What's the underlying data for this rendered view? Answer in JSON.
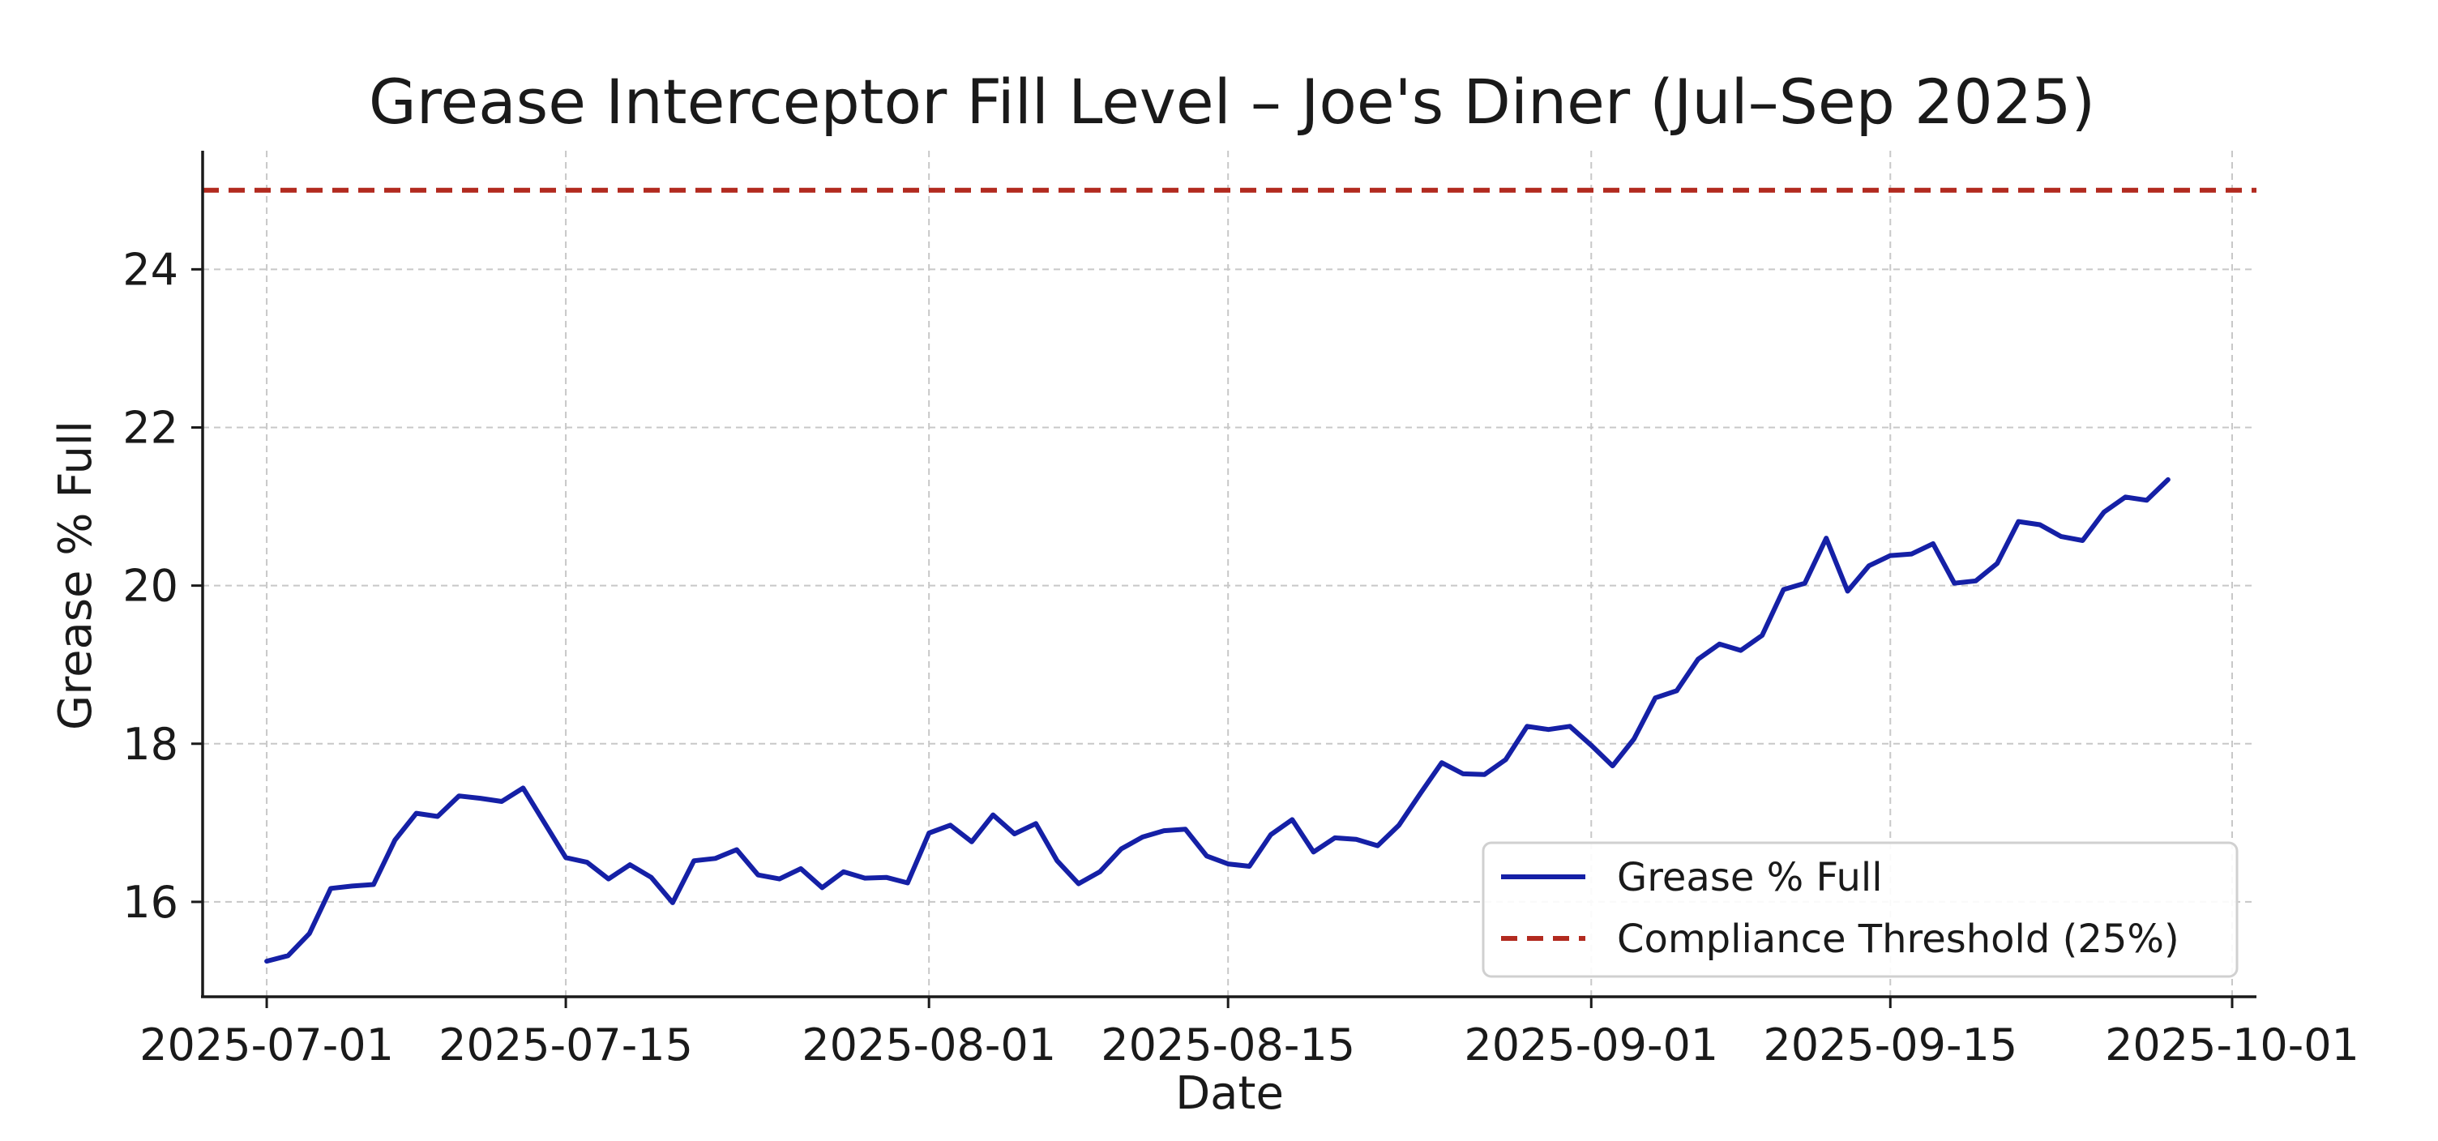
{
  "chart_data": {
    "type": "line",
    "title": "Grease Interceptor Fill Level – Joe's Diner (Jul–Sep 2025)",
    "xlabel": "Date",
    "ylabel": "Grease % Full",
    "x_type": "date",
    "xlim": [
      "2025-06-28",
      "2025-10-01"
    ],
    "ylim": [
      14.8,
      25.5
    ],
    "x_ticks": [
      "2025-07-01",
      "2025-07-15",
      "2025-08-01",
      "2025-08-15",
      "2025-09-01",
      "2025-09-15",
      "2025-10-01"
    ],
    "y_ticks": [
      16,
      18,
      20,
      22,
      24
    ],
    "grid": true,
    "legend_position": "bottom-right",
    "series": [
      {
        "name": "Grease % Full",
        "color": "#1520a6",
        "style": "solid",
        "points": [
          [
            "2025-07-01",
            15.25
          ],
          [
            "2025-07-02",
            15.32
          ],
          [
            "2025-07-03",
            15.6
          ],
          [
            "2025-07-04",
            16.17
          ],
          [
            "2025-07-05",
            16.2
          ],
          [
            "2025-07-06",
            16.22
          ],
          [
            "2025-07-07",
            16.78
          ],
          [
            "2025-07-08",
            17.12
          ],
          [
            "2025-07-09",
            17.08
          ],
          [
            "2025-07-10",
            17.34
          ],
          [
            "2025-07-11",
            17.31
          ],
          [
            "2025-07-12",
            17.27
          ],
          [
            "2025-07-13",
            17.44
          ],
          [
            "2025-07-14",
            17.0
          ],
          [
            "2025-07-15",
            16.56
          ],
          [
            "2025-07-16",
            16.5
          ],
          [
            "2025-07-17",
            16.29
          ],
          [
            "2025-07-18",
            16.47
          ],
          [
            "2025-07-19",
            16.31
          ],
          [
            "2025-07-20",
            15.99
          ],
          [
            "2025-07-21",
            16.52
          ],
          [
            "2025-07-22",
            16.55
          ],
          [
            "2025-07-23",
            16.66
          ],
          [
            "2025-07-24",
            16.34
          ],
          [
            "2025-07-25",
            16.29
          ],
          [
            "2025-07-26",
            16.42
          ],
          [
            "2025-07-27",
            16.18
          ],
          [
            "2025-07-28",
            16.38
          ],
          [
            "2025-07-29",
            16.3
          ],
          [
            "2025-07-30",
            16.31
          ],
          [
            "2025-07-31",
            16.24
          ],
          [
            "2025-08-01",
            16.87
          ],
          [
            "2025-08-02",
            16.97
          ],
          [
            "2025-08-03",
            16.76
          ],
          [
            "2025-08-04",
            17.1
          ],
          [
            "2025-08-05",
            16.86
          ],
          [
            "2025-08-06",
            16.99
          ],
          [
            "2025-08-07",
            16.52
          ],
          [
            "2025-08-08",
            16.23
          ],
          [
            "2025-08-09",
            16.38
          ],
          [
            "2025-08-10",
            16.67
          ],
          [
            "2025-08-11",
            16.82
          ],
          [
            "2025-08-12",
            16.9
          ],
          [
            "2025-08-13",
            16.92
          ],
          [
            "2025-08-14",
            16.58
          ],
          [
            "2025-08-15",
            16.48
          ],
          [
            "2025-08-16",
            16.45
          ],
          [
            "2025-08-17",
            16.85
          ],
          [
            "2025-08-18",
            17.04
          ],
          [
            "2025-08-19",
            16.63
          ],
          [
            "2025-08-20",
            16.81
          ],
          [
            "2025-08-21",
            16.79
          ],
          [
            "2025-08-22",
            16.71
          ],
          [
            "2025-08-23",
            16.97
          ],
          [
            "2025-08-24",
            17.37
          ],
          [
            "2025-08-25",
            17.76
          ],
          [
            "2025-08-26",
            17.62
          ],
          [
            "2025-08-27",
            17.61
          ],
          [
            "2025-08-28",
            17.8
          ],
          [
            "2025-08-29",
            18.22
          ],
          [
            "2025-08-30",
            18.18
          ],
          [
            "2025-08-31",
            18.22
          ],
          [
            "2025-09-01",
            17.98
          ],
          [
            "2025-09-02",
            17.72
          ],
          [
            "2025-09-03",
            18.06
          ],
          [
            "2025-09-04",
            18.58
          ],
          [
            "2025-09-05",
            18.67
          ],
          [
            "2025-09-06",
            19.07
          ],
          [
            "2025-09-07",
            19.26
          ],
          [
            "2025-09-08",
            19.18
          ],
          [
            "2025-09-09",
            19.37
          ],
          [
            "2025-09-10",
            19.95
          ],
          [
            "2025-09-11",
            20.03
          ],
          [
            "2025-09-12",
            20.6
          ],
          [
            "2025-09-13",
            19.93
          ],
          [
            "2025-09-14",
            20.25
          ],
          [
            "2025-09-15",
            20.38
          ],
          [
            "2025-09-16",
            20.4
          ],
          [
            "2025-09-17",
            20.53
          ],
          [
            "2025-09-18",
            20.03
          ],
          [
            "2025-09-19",
            20.06
          ],
          [
            "2025-09-20",
            20.28
          ],
          [
            "2025-09-21",
            20.81
          ],
          [
            "2025-09-22",
            20.77
          ],
          [
            "2025-09-23",
            20.62
          ],
          [
            "2025-09-24",
            20.57
          ],
          [
            "2025-09-25",
            20.93
          ],
          [
            "2025-09-26",
            21.12
          ],
          [
            "2025-09-27",
            21.08
          ],
          [
            "2025-09-28",
            21.34
          ]
        ]
      },
      {
        "name": "Compliance Threshold (25%)",
        "color": "#b22a1f",
        "style": "dashed",
        "constant": 25
      }
    ]
  }
}
